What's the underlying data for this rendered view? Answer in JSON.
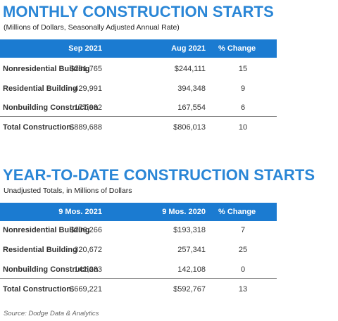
{
  "monthly": {
    "title": "MONTHLY CONSTRUCTION STARTS",
    "subtitle": "(Millions of Dollars, Seasonally Adjusted Annual Rate)",
    "headers": [
      "Sep 2021",
      "Aug 2021",
      "% Change"
    ],
    "rows": [
      {
        "label": "Nonresidential Building",
        "v1": "$281,765",
        "v2": "$244,111",
        "pct": "15"
      },
      {
        "label": "Residential Building",
        "v1": "429,991",
        "v2": "394,348",
        "pct": "9"
      },
      {
        "label": "Nonbuilding Construction",
        "v1": "177,932",
        "v2": "167,554",
        "pct": "6"
      }
    ],
    "total": {
      "label": "Total Construction",
      "v1": "$889,688",
      "v2": "$806,013",
      "pct": "10"
    }
  },
  "ytd": {
    "title": "YEAR-TO-DATE CONSTRUCTION STARTS",
    "subtitle": "Unadjusted Totals, in Millions of Dollars",
    "headers": [
      "9 Mos. 2021",
      "9 Mos. 2020",
      "% Change"
    ],
    "rows": [
      {
        "label": "Nonresidential Building",
        "v1": "$206,266",
        "v2": "$193,318",
        "pct": "7"
      },
      {
        "label": "Residential Building",
        "v1": "320,672",
        "v2": "257,341",
        "pct": "25"
      },
      {
        "label": "Nonbuilding Construction",
        "v1": "142,283",
        "v2": "142,108",
        "pct": "0"
      }
    ],
    "total": {
      "label": "Total Construction",
      "v1": "$669,221",
      "v2": "$592,767",
      "pct": "13"
    }
  },
  "source": "Source: Dodge Data & Analytics",
  "colors": {
    "title": "#2a86d6",
    "header_bg": "#1b7bd1"
  }
}
